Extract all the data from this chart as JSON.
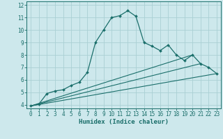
{
  "xlabel": "Humidex (Indice chaleur)",
  "ylabel": "",
  "xlim": [
    -0.5,
    23.5
  ],
  "ylim": [
    3.7,
    12.3
  ],
  "xticks": [
    0,
    1,
    2,
    3,
    4,
    5,
    6,
    7,
    8,
    9,
    10,
    11,
    12,
    13,
    14,
    15,
    16,
    17,
    18,
    19,
    20,
    21,
    22,
    23
  ],
  "yticks": [
    4,
    5,
    6,
    7,
    8,
    9,
    10,
    11,
    12
  ],
  "bg_color": "#cde8ec",
  "line_color": "#1a6e6a",
  "grid_color": "#aad0d4",
  "curve1_x": [
    0,
    1,
    2,
    3,
    4,
    5,
    6,
    7,
    8,
    9,
    10,
    11,
    12,
    13,
    14,
    15,
    16,
    17,
    18,
    19,
    20,
    21,
    22,
    23
  ],
  "curve1_y": [
    3.9,
    4.05,
    4.9,
    5.1,
    5.2,
    5.55,
    5.8,
    6.6,
    9.0,
    10.0,
    11.0,
    11.15,
    11.55,
    11.1,
    9.0,
    8.7,
    8.35,
    8.8,
    8.0,
    7.55,
    8.0,
    7.3,
    7.0,
    6.5
  ],
  "curve2_x": [
    0,
    23
  ],
  "curve2_y": [
    3.9,
    6.5
  ],
  "curve3_x": [
    0,
    21
  ],
  "curve3_y": [
    3.9,
    7.3
  ],
  "curve4_x": [
    0,
    20
  ],
  "curve4_y": [
    3.9,
    8.0
  ]
}
